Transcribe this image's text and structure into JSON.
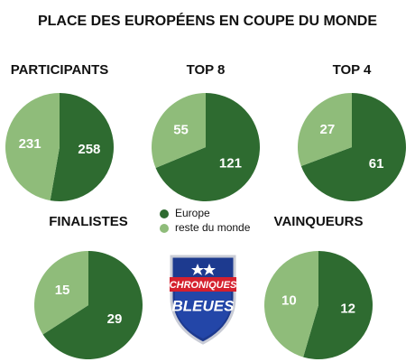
{
  "title": "PLACE DES EUROPÉENS EN COUPE DU MONDE",
  "logo": {
    "line1": "CHRONIQUES",
    "line2": "BLEUES"
  },
  "chart_data": [
    {
      "type": "pie",
      "title": "PARTICIPANTS",
      "categories": [
        "Europe",
        "reste du monde"
      ],
      "values": [
        258,
        231
      ],
      "colors": [
        "#2e6b30",
        "#8fbc7a"
      ]
    },
    {
      "type": "pie",
      "title": "TOP 8",
      "categories": [
        "Europe",
        "reste du monde"
      ],
      "values": [
        121,
        55
      ],
      "colors": [
        "#2e6b30",
        "#8fbc7a"
      ]
    },
    {
      "type": "pie",
      "title": "TOP 4",
      "categories": [
        "Europe",
        "reste du monde"
      ],
      "values": [
        61,
        27
      ],
      "colors": [
        "#2e6b30",
        "#8fbc7a"
      ]
    },
    {
      "type": "pie",
      "title": "FINALISTES",
      "categories": [
        "Europe",
        "reste du monde"
      ],
      "values": [
        29,
        15
      ],
      "colors": [
        "#2e6b30",
        "#8fbc7a"
      ]
    },
    {
      "type": "pie",
      "title": "VAINQUEURS",
      "categories": [
        "Europe",
        "reste du monde"
      ],
      "values": [
        12,
        10
      ],
      "colors": [
        "#2e6b30",
        "#8fbc7a"
      ]
    }
  ]
}
